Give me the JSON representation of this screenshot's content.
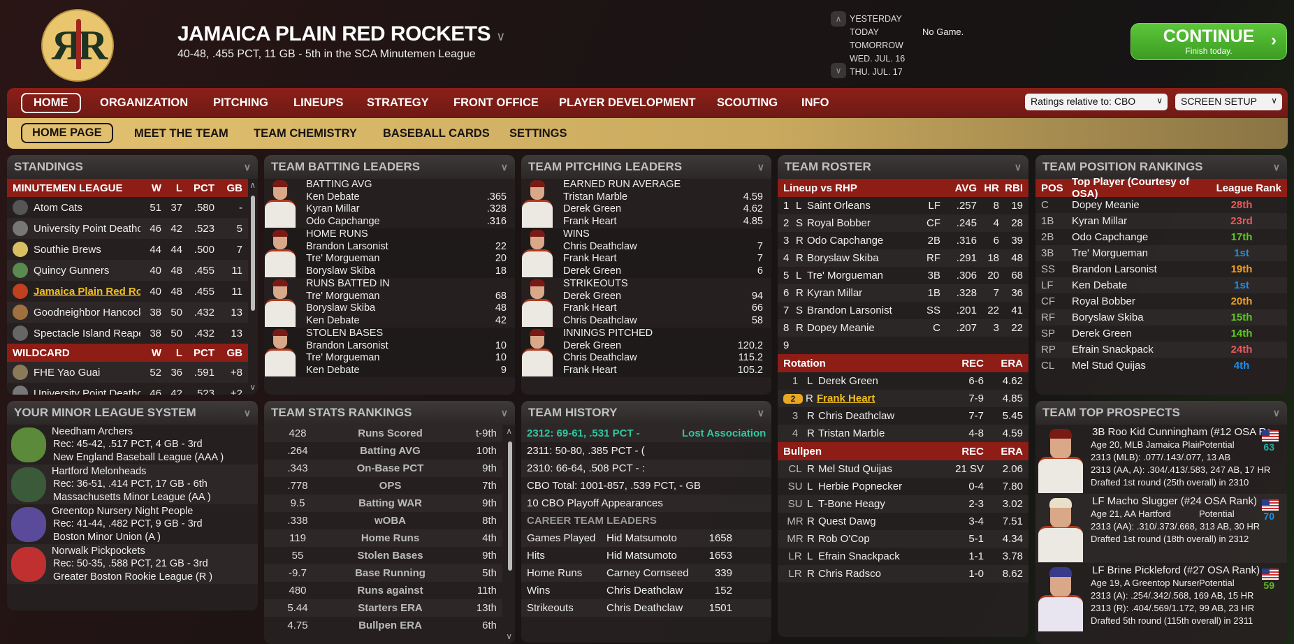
{
  "header": {
    "team_name": "JAMAICA PLAIN RED ROCKETS",
    "team_record": "40-48, .455 PCT, 11 GB - 5th in the SCA Minutemen League",
    "logo_text": "RR RED ROCKET",
    "dates": [
      "YESTERDAY",
      "TODAY",
      "TOMORROW",
      "WED. JUL. 16",
      "THU. JUL. 17"
    ],
    "today_game": "No Game.",
    "continue_label": "CONTINUE",
    "continue_sub": "Finish today."
  },
  "nav": {
    "items": [
      "HOME",
      "ORGANIZATION",
      "PITCHING",
      "LINEUPS",
      "STRATEGY",
      "FRONT OFFICE",
      "PLAYER DEVELOPMENT",
      "SCOUTING",
      "INFO"
    ],
    "selected": "HOME",
    "ratings_dropdown": "Ratings relative to: CBO",
    "screen_setup": "SCREEN SETUP"
  },
  "subnav": {
    "items": [
      "HOME PAGE",
      "MEET THE TEAM",
      "TEAM CHEMISTRY",
      "BASEBALL CARDS",
      "SETTINGS"
    ],
    "selected": "HOME PAGE"
  },
  "standings": {
    "title": "STANDINGS",
    "league_header": [
      "MINUTEMEN LEAGUE",
      "W",
      "L",
      "PCT",
      "GB"
    ],
    "teams": [
      [
        "Atom Cats",
        "51",
        "37",
        ".580",
        "-"
      ],
      [
        "University Point Deathc",
        "46",
        "42",
        ".523",
        "5"
      ],
      [
        "Southie Brews",
        "44",
        "44",
        ".500",
        "7"
      ],
      [
        "Quincy Gunners",
        "40",
        "48",
        ".455",
        "11"
      ],
      [
        "Jamaica Plain Red Rocl",
        "40",
        "48",
        ".455",
        "11"
      ],
      [
        "Goodneighbor Hancock",
        "38",
        "50",
        ".432",
        "13"
      ],
      [
        "Spectacle Island Reaper",
        "38",
        "50",
        ".432",
        "13"
      ]
    ],
    "wildcard_header": [
      "WILDCARD",
      "W",
      "L",
      "PCT",
      "GB"
    ],
    "wildcard": [
      [
        "FHE Yao Guai",
        "52",
        "36",
        ".591",
        "+8"
      ],
      [
        "University Point Deathcl",
        "46",
        "42",
        ".523",
        "+2"
      ]
    ]
  },
  "batting_leaders": {
    "title": "TEAM BATTING LEADERS",
    "groups": [
      {
        "category": "BATTING AVG",
        "rows": [
          [
            "Ken Debate",
            ".365"
          ],
          [
            "Kyran Millar",
            ".328"
          ],
          [
            "Odo Capchange",
            ".316"
          ]
        ]
      },
      {
        "category": "HOME RUNS",
        "rows": [
          [
            "Brandon Larsonist",
            "22"
          ],
          [
            "Tre' Morgueman",
            "20"
          ],
          [
            "Boryslaw Skiba",
            "18"
          ]
        ]
      },
      {
        "category": "RUNS BATTED IN",
        "rows": [
          [
            "Tre' Morgueman",
            "68"
          ],
          [
            "Boryslaw Skiba",
            "48"
          ],
          [
            "Ken Debate",
            "42"
          ]
        ]
      },
      {
        "category": "STOLEN BASES",
        "rows": [
          [
            "Brandon Larsonist",
            "10"
          ],
          [
            "Tre' Morgueman",
            "10"
          ],
          [
            "Ken Debate",
            "9"
          ]
        ]
      }
    ]
  },
  "pitching_leaders": {
    "title": "TEAM PITCHING LEADERS",
    "groups": [
      {
        "category": "EARNED RUN AVERAGE",
        "rows": [
          [
            "Tristan Marble",
            "4.59"
          ],
          [
            "Derek Green",
            "4.62"
          ],
          [
            "Frank Heart",
            "4.85"
          ]
        ]
      },
      {
        "category": "WINS",
        "rows": [
          [
            "Chris Deathclaw",
            "7"
          ],
          [
            "Frank Heart",
            "7"
          ],
          [
            "Derek Green",
            "6"
          ]
        ]
      },
      {
        "category": "STRIKEOUTS",
        "rows": [
          [
            "Derek Green",
            "94"
          ],
          [
            "Frank Heart",
            "66"
          ],
          [
            "Chris Deathclaw",
            "58"
          ]
        ]
      },
      {
        "category": "INNINGS PITCHED",
        "rows": [
          [
            "Derek Green",
            "120.2"
          ],
          [
            "Chris Deathclaw",
            "115.2"
          ],
          [
            "Frank Heart",
            "105.2"
          ]
        ]
      }
    ]
  },
  "roster": {
    "title": "TEAM ROSTER",
    "lineup_header": [
      "Lineup vs RHP",
      "AVG",
      "HR",
      "RBI"
    ],
    "lineup": [
      [
        "1",
        "L",
        "Saint Orleans",
        "LF",
        ".257",
        "8",
        "19"
      ],
      [
        "2",
        "S",
        "Royal Bobber",
        "CF",
        ".245",
        "4",
        "28"
      ],
      [
        "3",
        "R",
        "Odo Capchange",
        "2B",
        ".316",
        "6",
        "39"
      ],
      [
        "4",
        "R",
        "Boryslaw Skiba",
        "RF",
        ".291",
        "18",
        "48"
      ],
      [
        "5",
        "L",
        "Tre' Morgueman",
        "3B",
        ".306",
        "20",
        "68"
      ],
      [
        "6",
        "R",
        "Kyran Millar",
        "1B",
        ".328",
        "7",
        "36"
      ],
      [
        "7",
        "S",
        "Brandon Larsonist",
        "SS",
        ".201",
        "22",
        "41"
      ],
      [
        "8",
        "R",
        "Dopey Meanie",
        "C",
        ".207",
        "3",
        "22"
      ],
      [
        "9",
        "",
        "",
        "",
        "",
        "",
        ""
      ]
    ],
    "rotation_header": [
      "Rotation",
      "REC",
      "ERA"
    ],
    "rotation": [
      [
        "1",
        "L",
        "Derek Green",
        "6-6",
        "4.62"
      ],
      [
        "2",
        "R",
        "Frank Heart",
        "7-9",
        "4.85"
      ],
      [
        "3",
        "R",
        "Chris Deathclaw",
        "7-7",
        "5.45"
      ],
      [
        "4",
        "R",
        "Tristan Marble",
        "4-8",
        "4.59"
      ]
    ],
    "bullpen_header": [
      "Bullpen",
      "REC",
      "ERA"
    ],
    "bullpen": [
      [
        "CL",
        "R",
        "Mel Stud Quijas",
        "21 SV",
        "2.06"
      ],
      [
        "SU",
        "L",
        "Herbie Popnecker",
        "0-4",
        "7.80"
      ],
      [
        "SU",
        "L",
        "T-Bone Heagy",
        "2-3",
        "3.02"
      ],
      [
        "MR",
        "R",
        "Quest Dawg",
        "3-4",
        "7.51"
      ],
      [
        "MR",
        "R",
        "Rob O'Cop",
        "5-1",
        "4.34"
      ],
      [
        "LR",
        "L",
        "Efrain Snackpack",
        "1-1",
        "3.78"
      ],
      [
        "LR",
        "R",
        "Chris Radsco",
        "1-0",
        "8.62"
      ]
    ]
  },
  "position_rankings": {
    "title": "TEAM POSITION RANKINGS",
    "header": [
      "POS",
      "Top Player (Courtesy of OSA)",
      "League Rank"
    ],
    "rows": [
      [
        "C",
        "Dopey Meanie",
        "28th",
        "#e85a5a"
      ],
      [
        "1B",
        "Kyran Millar",
        "23rd",
        "#e85a5a"
      ],
      [
        "2B",
        "Odo Capchange",
        "17th",
        "#5ec822"
      ],
      [
        "3B",
        "Tre' Morgueman",
        "1st",
        "#1e8ee8"
      ],
      [
        "SS",
        "Brandon Larsonist",
        "19th",
        "#f0a020"
      ],
      [
        "LF",
        "Ken Debate",
        "1st",
        "#1e8ee8"
      ],
      [
        "CF",
        "Royal Bobber",
        "20th",
        "#f0a020"
      ],
      [
        "RF",
        "Boryslaw Skiba",
        "15th",
        "#5ec822"
      ],
      [
        "SP",
        "Derek Green",
        "14th",
        "#5ec822"
      ],
      [
        "RP",
        "Efrain Snackpack",
        "24th",
        "#e85a5a"
      ],
      [
        "CL",
        "Mel Stud Quijas",
        "4th",
        "#1e8ee8"
      ]
    ]
  },
  "minor_league": {
    "title": "YOUR MINOR LEAGUE SYSTEM",
    "teams": [
      {
        "name": "Needham Archers",
        "record": "Rec: 45-42, .517 PCT, 4 GB - 3rd",
        "league": "New England Baseball League (AAA )"
      },
      {
        "name": "Hartford Melonheads",
        "record": "Rec: 36-51, .414 PCT, 17 GB - 6th",
        "league": "Massachusetts Minor League (AA )"
      },
      {
        "name": "Greentop Nursery Night People",
        "record": "Rec: 41-44, .482 PCT, 9 GB - 3rd",
        "league": "Boston Minor Union (A )"
      },
      {
        "name": "Norwalk Pickpockets",
        "record": "Rec: 50-35, .588 PCT, 21 GB - 3rd",
        "league": "Greater Boston Rookie League (R )"
      }
    ]
  },
  "stats_rankings": {
    "title": "TEAM STATS RANKINGS",
    "rows": [
      [
        "428",
        "Runs Scored",
        "t-9th"
      ],
      [
        ".264",
        "Batting AVG",
        "10th"
      ],
      [
        ".343",
        "On-Base PCT",
        "9th"
      ],
      [
        ".778",
        "OPS",
        "7th"
      ],
      [
        "9.5",
        "Batting WAR",
        "9th"
      ],
      [
        ".338",
        "wOBA",
        "8th"
      ],
      [
        "119",
        "Home Runs",
        "4th"
      ],
      [
        "55",
        "Stolen Bases",
        "9th"
      ],
      [
        "-9.7",
        "Base Running",
        "5th"
      ],
      [
        "480",
        "Runs against",
        "11th"
      ],
      [
        "5.44",
        "Starters ERA",
        "13th"
      ],
      [
        "4.75",
        "Bullpen ERA",
        "6th"
      ]
    ]
  },
  "history": {
    "title": "TEAM HISTORY",
    "seasons": [
      [
        "2312: 69-61, .531 PCT -",
        "Lost Association"
      ],
      [
        "2311: 50-80, .385 PCT - (",
        ""
      ],
      [
        "2310: 66-64, .508 PCT - :",
        ""
      ]
    ],
    "total": "CBO Total: 1001-857, .539 PCT, - GB",
    "playoffs": "10 CBO Playoff Appearances",
    "leaders_title": "CAREER TEAM LEADERS",
    "leaders": [
      [
        "Games Played",
        "Hid Matsumoto",
        "1658"
      ],
      [
        "Hits",
        "Hid Matsumoto",
        "1653"
      ],
      [
        "Home Runs",
        "Carney Cornseed",
        "339"
      ],
      [
        "Wins",
        "Chris Deathclaw",
        "152"
      ],
      [
        "Strikeouts",
        "Chris Deathclaw",
        "1501"
      ]
    ]
  },
  "prospects": {
    "title": "TEAM TOP PROSPECTS",
    "potential_label": "Potential",
    "items": [
      {
        "name": "3B Roo Kid Cunningham (#12 OSA Ran",
        "info": "Age 20, MLB Jamaica Plain",
        "potential": "63",
        "color": "#20b0a0",
        "lines": [
          "2313 (MLB): .077/.143/.077, 13 AB",
          "2313 (AA, A): .304/.413/.583, 247 AB, 17 HR",
          "Drafted 1st round (25th overall) in 2310"
        ]
      },
      {
        "name": "LF Macho Slugger (#24 OSA Rank)",
        "info": "Age 21, AA Hartford",
        "potential": "70",
        "color": "#2090e0",
        "lines": [
          "2313 (AA): .310/.373/.668, 313 AB, 30 HR",
          "Drafted 1st round (18th overall) in 2312"
        ]
      },
      {
        "name": "LF Brine Pickleford (#27 OSA Rank)",
        "info": "Age 19, A Greentop Nursery",
        "potential": "59",
        "color": "#60c020",
        "lines": [
          "2313 (A): .254/.342/.568, 169 AB, 15 HR",
          "2313 (R): .404/.569/1.172, 99 AB, 23 HR",
          "Drafted 5th round (115th overall) in 2311"
        ]
      }
    ]
  }
}
